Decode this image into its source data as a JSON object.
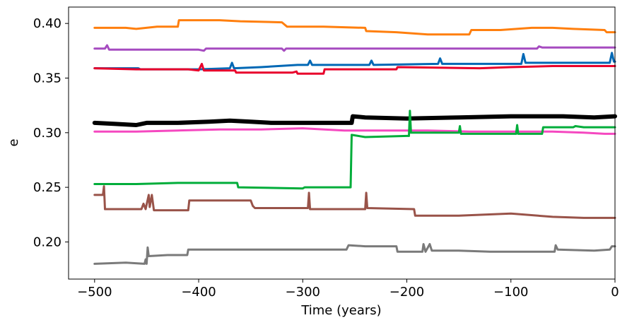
{
  "chart_data": {
    "type": "line",
    "title": "",
    "xlabel": "Time (years)",
    "ylabel": "e",
    "xlim": [
      -525,
      0
    ],
    "ylim": [
      0.166,
      0.415
    ],
    "xticks": [
      -500,
      -400,
      -300,
      -200,
      -100,
      0
    ],
    "xtick_labels": [
      "−500",
      "−400",
      "−300",
      "−200",
      "−100",
      "0"
    ],
    "yticks": [
      0.2,
      0.25,
      0.3,
      0.35,
      0.4
    ],
    "ytick_labels": [
      "0.20",
      "0.25",
      "0.30",
      "0.35",
      "0.40"
    ],
    "grid": false,
    "legend": "none",
    "series": [
      {
        "color": "#ff7f0e",
        "width": 3,
        "points": [
          [
            -500,
            0.396
          ],
          [
            -470,
            0.396
          ],
          [
            -460,
            0.395
          ],
          [
            -440,
            0.397
          ],
          [
            -420,
            0.397
          ],
          [
            -419,
            0.403
          ],
          [
            -380,
            0.403
          ],
          [
            -360,
            0.402
          ],
          [
            -320,
            0.401
          ],
          [
            -315,
            0.397
          ],
          [
            -280,
            0.397
          ],
          [
            -240,
            0.396
          ],
          [
            -239,
            0.393
          ],
          [
            -210,
            0.392
          ],
          [
            -180,
            0.39
          ],
          [
            -140,
            0.39
          ],
          [
            -138,
            0.394
          ],
          [
            -110,
            0.394
          ],
          [
            -80,
            0.396
          ],
          [
            -60,
            0.396
          ],
          [
            -40,
            0.395
          ],
          [
            -10,
            0.394
          ],
          [
            -8,
            0.392
          ],
          [
            0,
            0.392
          ]
        ]
      },
      {
        "color": "#a64bc0",
        "width": 3,
        "points": [
          [
            -500,
            0.377
          ],
          [
            -490,
            0.377
          ],
          [
            -488,
            0.38
          ],
          [
            -486,
            0.376
          ],
          [
            -400,
            0.376
          ],
          [
            -395,
            0.375
          ],
          [
            -393,
            0.377
          ],
          [
            -320,
            0.377
          ],
          [
            -318,
            0.375
          ],
          [
            -316,
            0.377
          ],
          [
            -200,
            0.377
          ],
          [
            -100,
            0.377
          ],
          [
            -75,
            0.377
          ],
          [
            -73,
            0.379
          ],
          [
            -70,
            0.378
          ],
          [
            0,
            0.378
          ]
        ]
      },
      {
        "color": "#0068b5",
        "width": 3,
        "points": [
          [
            -500,
            0.359
          ],
          [
            -480,
            0.359
          ],
          [
            -458,
            0.359
          ],
          [
            -456,
            0.358
          ],
          [
            -400,
            0.358
          ],
          [
            -370,
            0.359
          ],
          [
            -368,
            0.364
          ],
          [
            -366,
            0.359
          ],
          [
            -340,
            0.36
          ],
          [
            -305,
            0.362
          ],
          [
            -295,
            0.362
          ],
          [
            -293,
            0.366
          ],
          [
            -291,
            0.362
          ],
          [
            -236,
            0.362
          ],
          [
            -234,
            0.366
          ],
          [
            -232,
            0.362
          ],
          [
            -170,
            0.363
          ],
          [
            -168,
            0.368
          ],
          [
            -166,
            0.363
          ],
          [
            -90,
            0.363
          ],
          [
            -88,
            0.372
          ],
          [
            -86,
            0.364
          ],
          [
            -5,
            0.364
          ],
          [
            -3,
            0.373
          ],
          [
            -1,
            0.365
          ],
          [
            0,
            0.365
          ]
        ]
      },
      {
        "color": "#e8002b",
        "width": 3,
        "points": [
          [
            -500,
            0.359
          ],
          [
            -460,
            0.358
          ],
          [
            -410,
            0.358
          ],
          [
            -400,
            0.357
          ],
          [
            -397,
            0.363
          ],
          [
            -395,
            0.357
          ],
          [
            -365,
            0.357
          ],
          [
            -364,
            0.355
          ],
          [
            -310,
            0.355
          ],
          [
            -306,
            0.356
          ],
          [
            -305,
            0.354
          ],
          [
            -280,
            0.354
          ],
          [
            -279,
            0.358
          ],
          [
            -210,
            0.358
          ],
          [
            -209,
            0.36
          ],
          [
            -130,
            0.359
          ],
          [
            -100,
            0.36
          ],
          [
            -60,
            0.361
          ],
          [
            0,
            0.361
          ]
        ]
      },
      {
        "color": "#000000",
        "width": 6,
        "points": [
          [
            -500,
            0.309
          ],
          [
            -480,
            0.308
          ],
          [
            -460,
            0.307
          ],
          [
            -450,
            0.309
          ],
          [
            -420,
            0.309
          ],
          [
            -390,
            0.31
          ],
          [
            -370,
            0.311
          ],
          [
            -350,
            0.31
          ],
          [
            -330,
            0.309
          ],
          [
            -300,
            0.309
          ],
          [
            -253,
            0.309
          ],
          [
            -252,
            0.315
          ],
          [
            -240,
            0.314
          ],
          [
            -200,
            0.313
          ],
          [
            -150,
            0.314
          ],
          [
            -100,
            0.315
          ],
          [
            -50,
            0.315
          ],
          [
            -20,
            0.314
          ],
          [
            0,
            0.315
          ]
        ]
      },
      {
        "color": "#f548c0",
        "width": 3,
        "points": [
          [
            -500,
            0.301
          ],
          [
            -460,
            0.301
          ],
          [
            -420,
            0.302
          ],
          [
            -380,
            0.303
          ],
          [
            -340,
            0.303
          ],
          [
            -300,
            0.304
          ],
          [
            -260,
            0.302
          ],
          [
            -220,
            0.302
          ],
          [
            -180,
            0.302
          ],
          [
            -140,
            0.301
          ],
          [
            -100,
            0.301
          ],
          [
            -60,
            0.301
          ],
          [
            -30,
            0.3
          ],
          [
            -10,
            0.299
          ],
          [
            0,
            0.299
          ]
        ]
      },
      {
        "color": "#00ad3a",
        "width": 3,
        "points": [
          [
            -500,
            0.253
          ],
          [
            -460,
            0.253
          ],
          [
            -420,
            0.254
          ],
          [
            -380,
            0.254
          ],
          [
            -363,
            0.254
          ],
          [
            -362,
            0.25
          ],
          [
            -300,
            0.249
          ],
          [
            -298,
            0.25
          ],
          [
            -254,
            0.25
          ],
          [
            -253,
            0.298
          ],
          [
            -240,
            0.296
          ],
          [
            -200,
            0.297
          ],
          [
            -198,
            0.297
          ],
          [
            -197,
            0.32
          ],
          [
            -196,
            0.3
          ],
          [
            -150,
            0.3
          ],
          [
            -149,
            0.306
          ],
          [
            -148,
            0.299
          ],
          [
            -95,
            0.299
          ],
          [
            -94,
            0.307
          ],
          [
            -93,
            0.299
          ],
          [
            -70,
            0.299
          ],
          [
            -69,
            0.305
          ],
          [
            -50,
            0.305
          ],
          [
            -40,
            0.305
          ],
          [
            -38,
            0.306
          ],
          [
            -30,
            0.305
          ],
          [
            0,
            0.305
          ]
        ]
      },
      {
        "color": "#995349",
        "width": 3,
        "points": [
          [
            -500,
            0.243
          ],
          [
            -492,
            0.243
          ],
          [
            -491,
            0.251
          ],
          [
            -490,
            0.23
          ],
          [
            -455,
            0.23
          ],
          [
            -453,
            0.235
          ],
          [
            -451,
            0.23
          ],
          [
            -448,
            0.243
          ],
          [
            -447,
            0.232
          ],
          [
            -445,
            0.243
          ],
          [
            -443,
            0.229
          ],
          [
            -410,
            0.229
          ],
          [
            -409,
            0.238
          ],
          [
            -350,
            0.238
          ],
          [
            -348,
            0.233
          ],
          [
            -346,
            0.231
          ],
          [
            -295,
            0.231
          ],
          [
            -294,
            0.245
          ],
          [
            -293,
            0.23
          ],
          [
            -240,
            0.23
          ],
          [
            -239,
            0.245
          ],
          [
            -238,
            0.231
          ],
          [
            -193,
            0.23
          ],
          [
            -192,
            0.224
          ],
          [
            -150,
            0.224
          ],
          [
            -100,
            0.226
          ],
          [
            -60,
            0.223
          ],
          [
            -30,
            0.222
          ],
          [
            0,
            0.222
          ]
        ]
      },
      {
        "color": "#7a7a7a",
        "width": 3,
        "points": [
          [
            -500,
            0.18
          ],
          [
            -470,
            0.181
          ],
          [
            -452,
            0.18
          ],
          [
            -451,
            0.184
          ],
          [
            -450,
            0.18
          ],
          [
            -449,
            0.195
          ],
          [
            -448,
            0.187
          ],
          [
            -430,
            0.188
          ],
          [
            -411,
            0.188
          ],
          [
            -410,
            0.193
          ],
          [
            -360,
            0.193
          ],
          [
            -300,
            0.193
          ],
          [
            -258,
            0.193
          ],
          [
            -256,
            0.197
          ],
          [
            -240,
            0.196
          ],
          [
            -210,
            0.196
          ],
          [
            -209,
            0.191
          ],
          [
            -185,
            0.191
          ],
          [
            -184,
            0.198
          ],
          [
            -182,
            0.191
          ],
          [
            -178,
            0.198
          ],
          [
            -176,
            0.192
          ],
          [
            -150,
            0.192
          ],
          [
            -120,
            0.191
          ],
          [
            -90,
            0.191
          ],
          [
            -58,
            0.191
          ],
          [
            -57,
            0.197
          ],
          [
            -55,
            0.193
          ],
          [
            -20,
            0.192
          ],
          [
            -5,
            0.193
          ],
          [
            -3,
            0.196
          ],
          [
            0,
            0.196
          ]
        ]
      }
    ]
  }
}
